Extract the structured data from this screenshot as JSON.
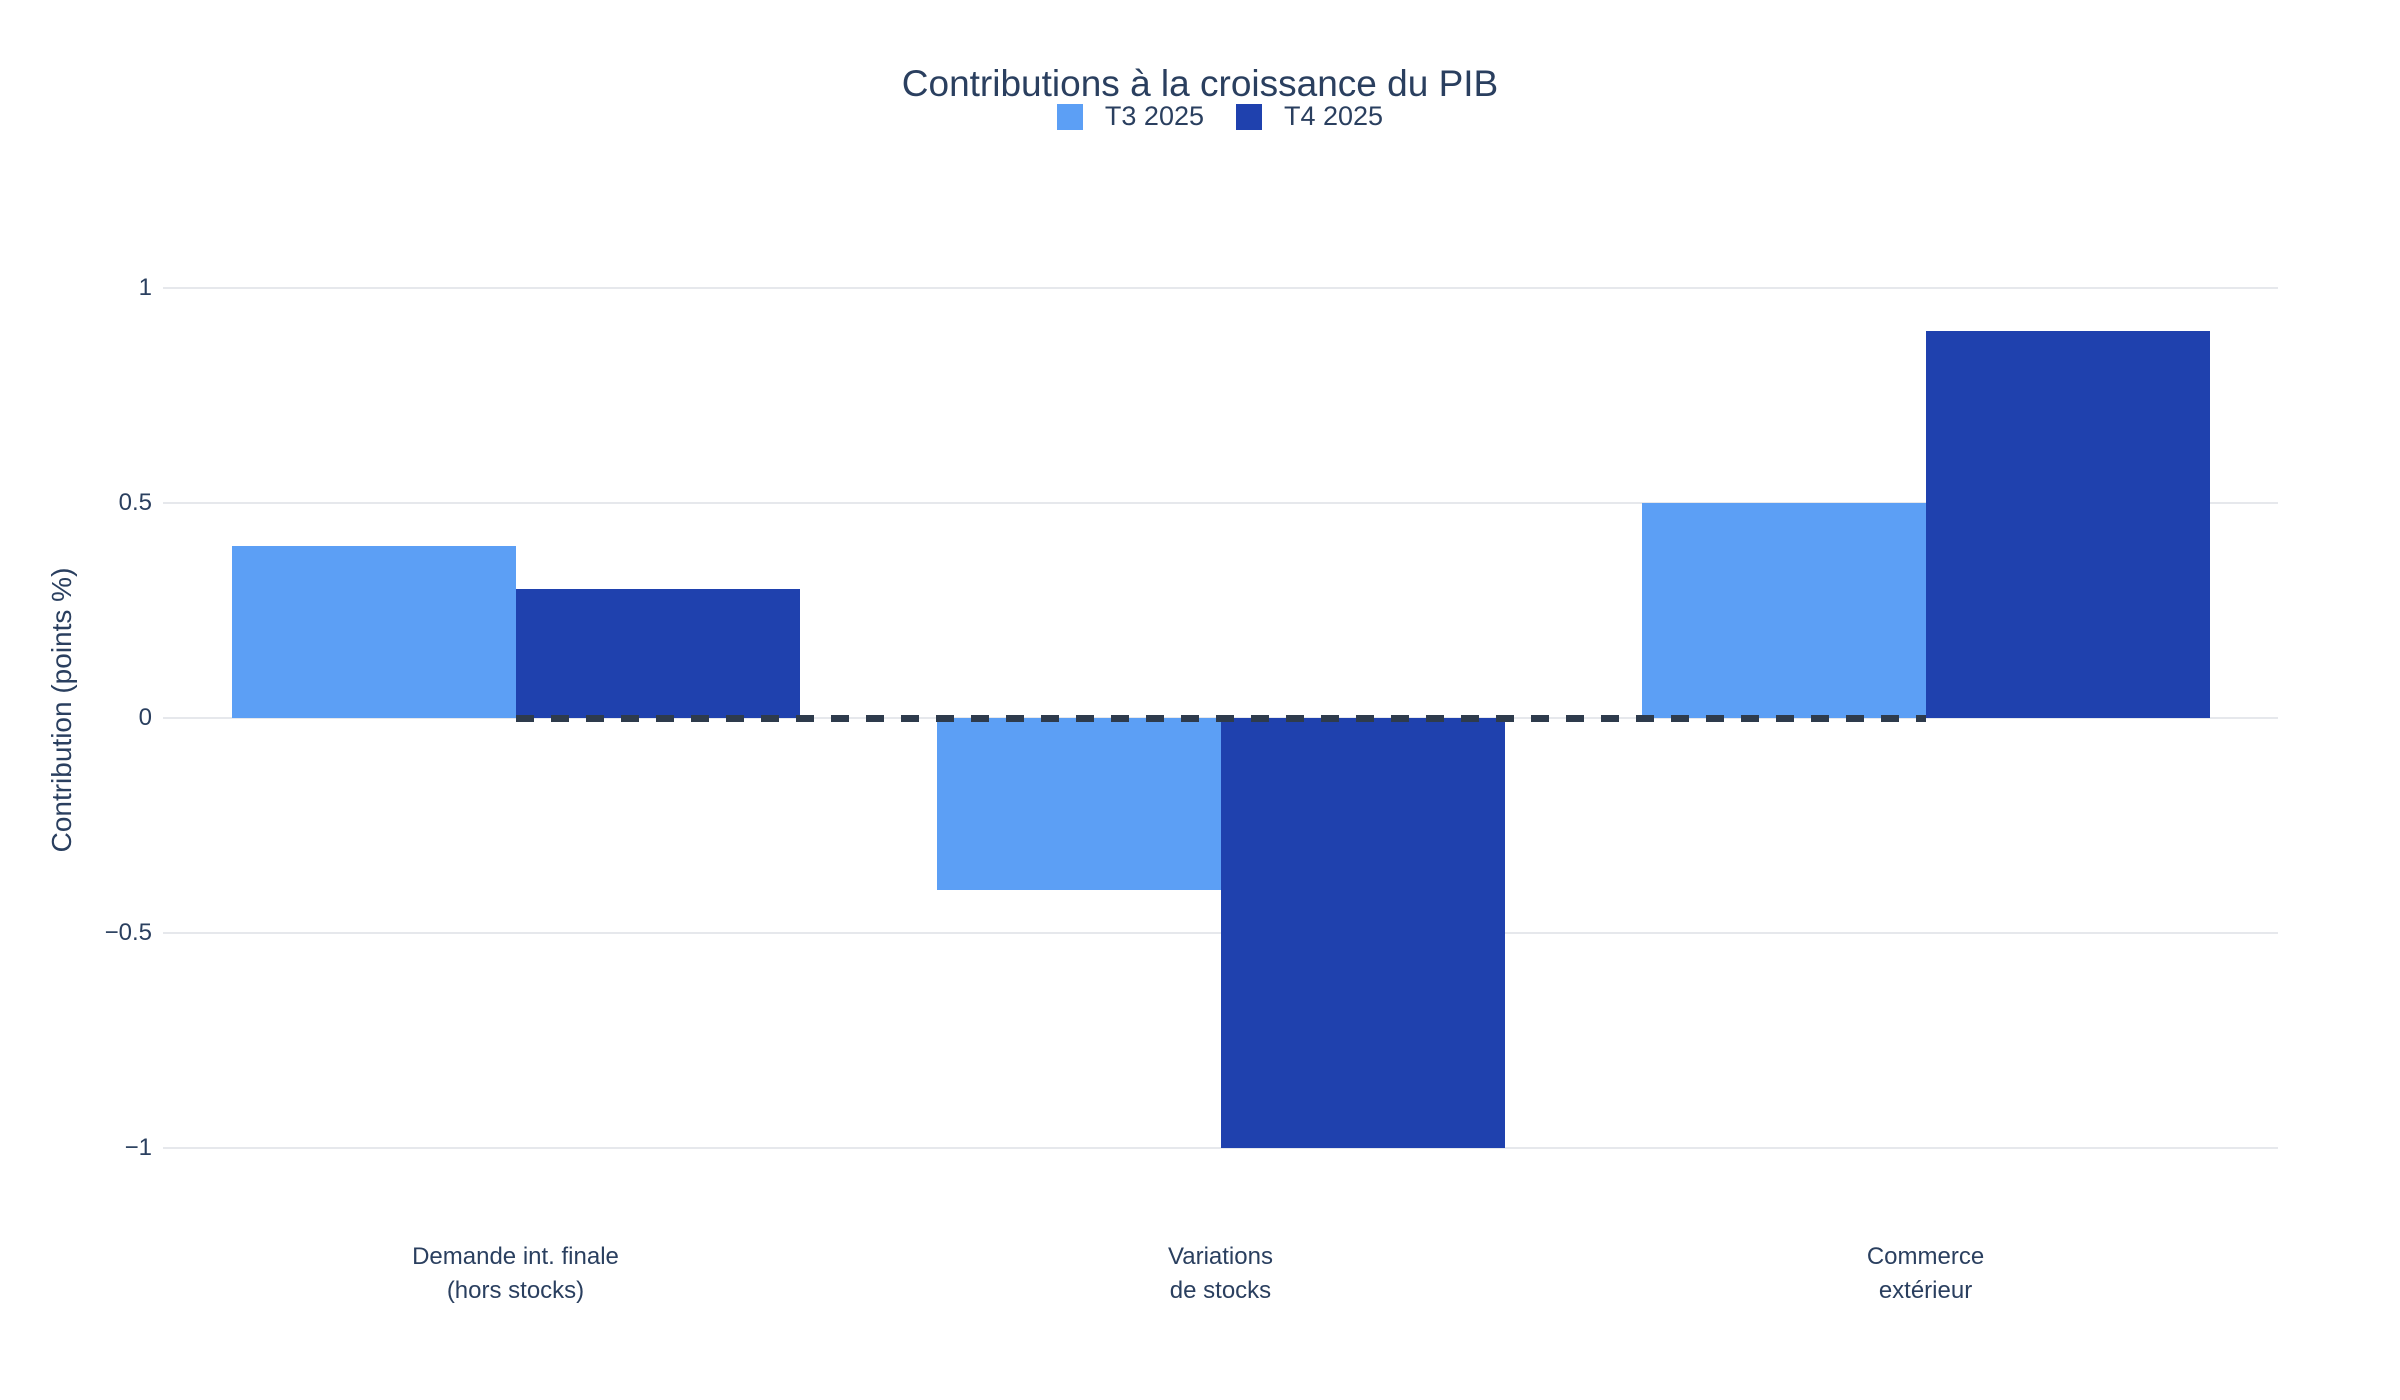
{
  "title": "Contributions à la croissance du PIB",
  "chart_data": {
    "type": "bar",
    "title": "Contributions à la croissance du PIB",
    "xlabel": "",
    "ylabel": "Contribution (points %)",
    "categories": [
      [
        "Demande int. finale",
        "(hors stocks)"
      ],
      [
        "Variations",
        "de stocks"
      ],
      [
        "Commerce",
        "extérieur"
      ]
    ],
    "series": [
      {
        "name": "T3 2025",
        "color": "#5C9FF5",
        "values": [
          0.4,
          -0.4,
          0.5
        ]
      },
      {
        "name": "T4 2025",
        "color": "#1F41AE",
        "values": [
          0.3,
          -1.0,
          0.9
        ]
      }
    ],
    "yticks": [
      {
        "value": 1,
        "label": "1"
      },
      {
        "value": 0.5,
        "label": "0.5"
      },
      {
        "value": 0,
        "label": "0"
      },
      {
        "value": -0.5,
        "label": "−0.5"
      },
      {
        "value": -1,
        "label": "−1"
      }
    ],
    "ylim": [
      -1.12,
      1.12
    ],
    "grid": true,
    "legend_position": "top-center",
    "zero_line": {
      "y": 0,
      "style": "dashed",
      "color": "#2E3B4C",
      "from_category": 0,
      "to_category": 2
    }
  },
  "colors": {
    "text": "#2A3F5F",
    "grid": "#E6E8EC",
    "background": "#FFFFFF",
    "series_t3": "#5C9FF5",
    "series_t4": "#1F41AE",
    "zero_line": "#2E3B4C"
  }
}
